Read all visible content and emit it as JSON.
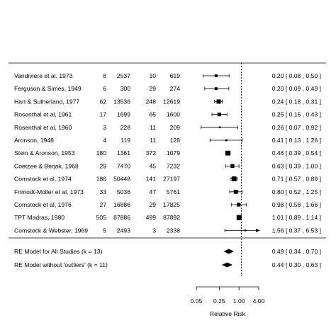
{
  "chart_data": {
    "type": "forest",
    "xlabel": "Relative Risk",
    "x_scale": "log",
    "xlim": [
      0.05,
      4.0
    ],
    "xticks": [
      "0.05",
      "0.25",
      "1.00",
      "4.00"
    ],
    "reference_line": 1.0,
    "studies": [
      {
        "label": "Vandiviere et al, 1973",
        "tpos": "8",
        "tneg": "2537",
        "cpos": "10",
        "cneg": "619",
        "rr": 0.2,
        "lo": 0.08,
        "hi": 0.5,
        "text": "0.20 [ 0.08 , 0.50 ]"
      },
      {
        "label": "Ferguson & Simes, 1949",
        "tpos": "6",
        "tneg": "300",
        "cpos": "29",
        "cneg": "274",
        "rr": 0.2,
        "lo": 0.09,
        "hi": 0.49,
        "text": "0.20 [ 0.09 , 0.49 ]"
      },
      {
        "label": "Hart & Sutherland, 1977",
        "tpos": "62",
        "tneg": "13536",
        "cpos": "248",
        "cneg": "12619",
        "rr": 0.24,
        "lo": 0.18,
        "hi": 0.31,
        "text": "0.24 [ 0.18 , 0.31 ]"
      },
      {
        "label": "Rosenthal et al, 1961",
        "tpos": "17",
        "tneg": "1699",
        "cpos": "65",
        "cneg": "1600",
        "rr": 0.25,
        "lo": 0.15,
        "hi": 0.43,
        "text": "0.25 [ 0.15 , 0.43 ]"
      },
      {
        "label": "Rosenthal et al, 1960",
        "tpos": "3",
        "tneg": "228",
        "cpos": "11",
        "cneg": "209",
        "rr": 0.26,
        "lo": 0.07,
        "hi": 0.92,
        "text": "0.26 [ 0.07 , 0.92 ]"
      },
      {
        "label": "Aronson, 1948",
        "tpos": "4",
        "tneg": "119",
        "cpos": "11",
        "cneg": "128",
        "rr": 0.41,
        "lo": 0.13,
        "hi": 1.26,
        "text": "0.41 [ 0.13 , 1.26 ]"
      },
      {
        "label": "Stein & Aronson, 1953",
        "tpos": "180",
        "tneg": "1361",
        "cpos": "372",
        "cneg": "1079",
        "rr": 0.46,
        "lo": 0.39,
        "hi": 0.54,
        "text": "0.46 [ 0.39 , 0.54 ]"
      },
      {
        "label": "Coetzee & Berjak, 1968",
        "tpos": "29",
        "tneg": "7470",
        "cpos": "45",
        "cneg": "7232",
        "rr": 0.63,
        "lo": 0.39,
        "hi": 1.0,
        "text": "0.63 [ 0.39 , 1.00 ]"
      },
      {
        "label": "Comstock et al, 1974",
        "tpos": "186",
        "tneg": "50448",
        "cpos": "141",
        "cneg": "27197",
        "rr": 0.71,
        "lo": 0.57,
        "hi": 0.89,
        "text": "0.71 [ 0.57 , 0.89 ]"
      },
      {
        "label": "Frimodt-Moller et al, 1973",
        "tpos": "33",
        "tneg": "5036",
        "cpos": "47",
        "cneg": "5761",
        "rr": 0.8,
        "lo": 0.52,
        "hi": 1.25,
        "text": "0.80 [ 0.52 , 1.25 ]"
      },
      {
        "label": "Comstock et al, 1976",
        "tpos": "27",
        "tneg": "16886",
        "cpos": "29",
        "cneg": "17825",
        "rr": 0.98,
        "lo": 0.58,
        "hi": 1.66,
        "text": "0.98 [ 0.58 , 1.66 ]"
      },
      {
        "label": "TPT Madras, 1980",
        "tpos": "505",
        "tneg": "87886",
        "cpos": "499",
        "cneg": "87892",
        "rr": 1.01,
        "lo": 0.89,
        "hi": 1.14,
        "text": "1.01 [ 0.89 , 1.14 ]"
      },
      {
        "label": "Comstock & Webster, 1969",
        "tpos": "5",
        "tneg": "2493",
        "cpos": "3",
        "cneg": "2338",
        "rr": 1.56,
        "lo": 0.37,
        "hi": 6.53,
        "text": "1.56 [ 0.37 , 6.53 ]"
      }
    ],
    "summaries": [
      {
        "label": "RE Model for All Studies (k = 13)",
        "rr": 0.49,
        "lo": 0.34,
        "hi": 0.7,
        "text": "0.49 [ 0.34 , 0.70 ]"
      },
      {
        "label": "RE Model without 'outliers' (k = 11)",
        "rr": 0.44,
        "lo": 0.3,
        "hi": 0.63,
        "text": "0.44 [ 0.30 , 0.63 ]"
      }
    ]
  }
}
